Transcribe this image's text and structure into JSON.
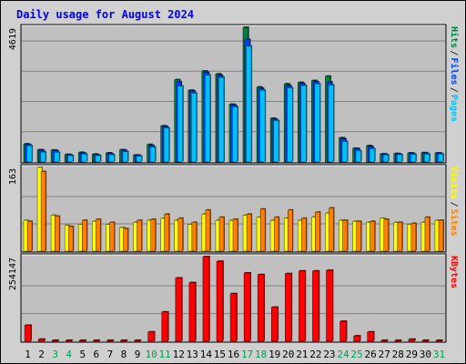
{
  "chart_data": {
    "type": "bar",
    "title": "Daily usage for August 2024",
    "categories": [
      "1",
      "2",
      "3",
      "4",
      "5",
      "6",
      "7",
      "8",
      "9",
      "10",
      "11",
      "12",
      "13",
      "14",
      "15",
      "16",
      "17",
      "18",
      "19",
      "20",
      "21",
      "22",
      "23",
      "24",
      "25",
      "26",
      "27",
      "28",
      "29",
      "30",
      "31"
    ],
    "weekend_days": [
      "3",
      "4",
      "10",
      "11",
      "17",
      "18",
      "24",
      "25",
      "31"
    ],
    "panels": [
      {
        "id": "hits",
        "ymax_label": "4619",
        "ymax": 4619,
        "right_labels": [
          "Pages",
          "Files",
          "Hits"
        ],
        "series": [
          {
            "name": "Hits",
            "color": "#008040",
            "values": [
              620,
              420,
              410,
              260,
              330,
              270,
              310,
              420,
              240,
              600,
              1240,
              2820,
              2460,
              3120,
              3020,
              1980,
              4619,
              2570,
              1500,
              2680,
              2730,
              2790,
              2940,
              830,
              470,
              560,
              280,
              290,
              310,
              320,
              310
            ]
          },
          {
            "name": "Files",
            "color": "#0040ff",
            "values": [
              600,
              400,
              390,
              250,
              310,
              250,
              290,
              400,
              230,
              560,
              1220,
              2750,
              2430,
              3070,
              2970,
              1950,
              4200,
              2520,
              1460,
              2620,
              2690,
              2750,
              2740,
              790,
              450,
              520,
              270,
              280,
              300,
              300,
              300
            ]
          },
          {
            "name": "Pages",
            "color": "#00c0ff",
            "values": [
              560,
              340,
              330,
              220,
              270,
              220,
              250,
              350,
              200,
              510,
              1170,
              2600,
              2360,
              2980,
              2900,
              1890,
              3970,
              2460,
              1420,
              2540,
              2620,
              2680,
              2640,
              700,
              380,
              450,
              240,
              250,
              260,
              270,
              270
            ]
          }
        ]
      },
      {
        "id": "visits",
        "ymax_label": "163",
        "ymax": 163,
        "right_labels": [
          "Sites",
          "Visits"
        ],
        "series": [
          {
            "name": "Visits",
            "color": "#ffff00",
            "values": [
              60,
              163,
              70,
              50,
              52,
              58,
              52,
              46,
              56,
              60,
              64,
              60,
              52,
              72,
              60,
              60,
              70,
              66,
              60,
              64,
              60,
              66,
              74,
              60,
              58,
              56,
              64,
              56,
              52,
              56,
              60
            ]
          },
          {
            "name": "Sites",
            "color": "#ff8000",
            "values": [
              58,
              155,
              68,
              48,
              60,
              62,
              56,
              44,
              60,
              62,
              72,
              64,
              56,
              80,
              66,
              62,
              72,
              82,
              66,
              80,
              64,
              76,
              84,
              60,
              58,
              58,
              62,
              56,
              54,
              66,
              60
            ]
          }
        ]
      },
      {
        "id": "kbytes",
        "ymax_label": "254147",
        "ymax": 254147,
        "right_labels": [
          "KBytes"
        ],
        "series": [
          {
            "name": "KBytes",
            "color": "#ff0000",
            "values": [
              48000,
              6000,
              1500,
              1500,
              1500,
              1500,
              1500,
              1500,
              1500,
              28000,
              88000,
              190000,
              176000,
              254147,
              240000,
              143000,
              205000,
              200000,
              102000,
              203000,
              211000,
              211000,
              213000,
              60000,
              16000,
              28000,
              1500,
              1500,
              6000,
              1500,
              1500
            ]
          }
        ]
      }
    ],
    "colors": {
      "plot_bg": "#c0c0c0",
      "frame_bg": "#d0d0d0",
      "title": "#0000ff",
      "weekday_label": "#000000",
      "weekend_label": "#00a050",
      "gridline": "#808080"
    }
  }
}
